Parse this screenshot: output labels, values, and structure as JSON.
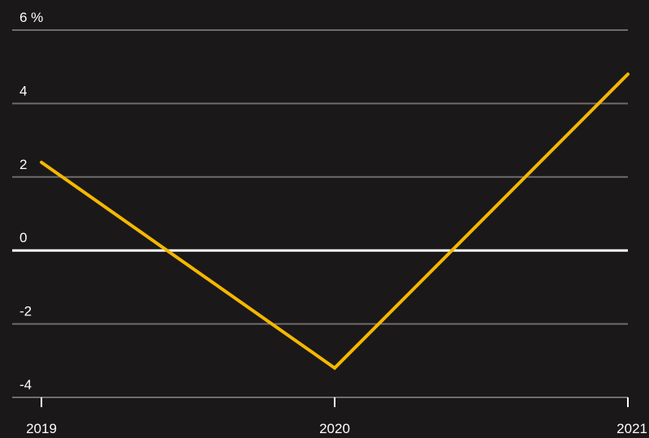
{
  "chart_data": {
    "type": "line",
    "title": "",
    "xlabel": "",
    "ylabel": "",
    "x": [
      "2019",
      "2020",
      "2021"
    ],
    "series": [
      {
        "values": [
          2.4,
          -3.2,
          4.8
        ],
        "color": "#f5b800"
      }
    ],
    "ylim": [
      -4,
      6
    ],
    "y_ticks": [
      {
        "value": 6,
        "label": "6 %"
      },
      {
        "value": 4,
        "label": "4"
      },
      {
        "value": 2,
        "label": "2"
      },
      {
        "value": 0,
        "label": "0"
      },
      {
        "value": -2,
        "label": "-2"
      },
      {
        "value": -4,
        "label": "-4"
      }
    ],
    "x_tick_labels": [
      "2019",
      "2020",
      "2021"
    ],
    "grid": true,
    "zero_line_color": "#ffffff",
    "grid_color": "#6f6c6e",
    "background": "#1b181a"
  }
}
